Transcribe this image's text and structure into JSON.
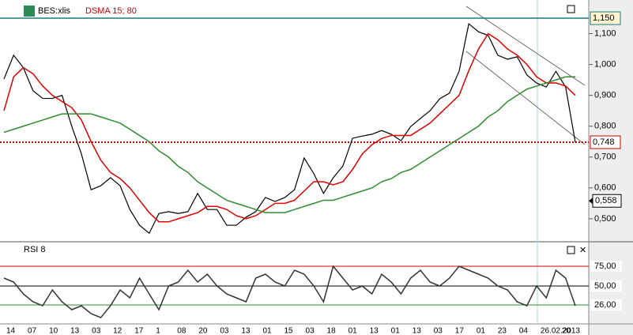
{
  "chart_data": [
    {
      "type": "line",
      "series": [
        {
          "name": "BES:xlis",
          "color": "#000000",
          "values": [
            0.953,
            1.03,
            0.99,
            0.915,
            0.89,
            0.89,
            0.9,
            0.8,
            0.71,
            0.594,
            0.607,
            0.633,
            0.607,
            0.53,
            0.479,
            0.453,
            0.517,
            0.523,
            0.517,
            0.523,
            0.582,
            0.53,
            0.53,
            0.479,
            0.479,
            0.505,
            0.523,
            0.569,
            0.556,
            0.569,
            0.594,
            0.697,
            0.646,
            0.582,
            0.633,
            0.671,
            0.761,
            0.768,
            0.774,
            0.786,
            0.774,
            0.753,
            0.799,
            0.825,
            0.85,
            0.889,
            0.907,
            0.978,
            1.132,
            1.106,
            1.094,
            1.03,
            1.017,
            1.025,
            0.966,
            0.94,
            0.927,
            0.978,
            0.927,
            0.748
          ]
        },
        {
          "name": "DSMA 15; 80",
          "color": "#e00000",
          "values": [
            0.85,
            0.96,
            0.99,
            0.97,
            0.93,
            0.9,
            0.88,
            0.86,
            0.82,
            0.75,
            0.69,
            0.65,
            0.63,
            0.6,
            0.56,
            0.52,
            0.49,
            0.49,
            0.5,
            0.51,
            0.52,
            0.54,
            0.54,
            0.53,
            0.51,
            0.5,
            0.51,
            0.53,
            0.55,
            0.55,
            0.56,
            0.59,
            0.62,
            0.62,
            0.61,
            0.62,
            0.66,
            0.71,
            0.74,
            0.76,
            0.77,
            0.77,
            0.77,
            0.79,
            0.81,
            0.84,
            0.87,
            0.9,
            0.98,
            1.05,
            1.1,
            1.08,
            1.05,
            1.03,
            1.0,
            0.96,
            0.94,
            0.94,
            0.93,
            0.9
          ]
        },
        {
          "color": "#2e8b2e",
          "values": [
            0.78,
            0.79,
            0.8,
            0.81,
            0.82,
            0.83,
            0.84,
            0.84,
            0.84,
            0.84,
            0.83,
            0.82,
            0.81,
            0.79,
            0.77,
            0.75,
            0.72,
            0.7,
            0.67,
            0.65,
            0.62,
            0.6,
            0.58,
            0.56,
            0.55,
            0.54,
            0.53,
            0.52,
            0.52,
            0.52,
            0.53,
            0.54,
            0.55,
            0.56,
            0.56,
            0.57,
            0.58,
            0.59,
            0.6,
            0.62,
            0.63,
            0.65,
            0.66,
            0.68,
            0.7,
            0.72,
            0.74,
            0.76,
            0.78,
            0.8,
            0.83,
            0.85,
            0.88,
            0.9,
            0.92,
            0.93,
            0.94,
            0.95,
            0.96,
            0.96
          ]
        }
      ],
      "ylim": [
        0.428,
        1.209
      ],
      "yticks": [
        {
          "value": 1.1,
          "label": "1,100"
        },
        {
          "value": 1.0,
          "label": "1,000"
        },
        {
          "value": 0.9,
          "label": "0,900"
        },
        {
          "value": 0.8,
          "label": "0,800"
        },
        {
          "value": 0.7,
          "label": "0,700"
        },
        {
          "value": 0.6,
          "label": "0,600"
        },
        {
          "value": 0.5,
          "label": "0,500"
        }
      ],
      "levels": [
        {
          "value": 1.15,
          "label": "1,150",
          "color": "#1a7a7a"
        },
        {
          "value": 0.748,
          "label": "0,748",
          "color": "#d00000"
        }
      ],
      "marker_label": {
        "value": 0.558,
        "label": "0,558"
      }
    },
    {
      "type": "line",
      "title": "RSI 8",
      "series": [
        {
          "color": "#333333",
          "values": [
            60,
            55,
            40,
            30,
            25,
            45,
            30,
            20,
            25,
            15,
            10,
            25,
            45,
            35,
            60,
            40,
            20,
            50,
            55,
            70,
            55,
            65,
            50,
            40,
            35,
            30,
            60,
            65,
            55,
            50,
            70,
            65,
            50,
            30,
            75,
            60,
            45,
            50,
            40,
            65,
            55,
            40,
            60,
            70,
            55,
            50,
            60,
            75,
            70,
            65,
            60,
            50,
            45,
            30,
            25,
            50,
            35,
            70,
            60,
            25
          ]
        }
      ],
      "ylim": [
        0,
        100
      ],
      "yticks": [
        {
          "value": 75,
          "label": "75,00",
          "color": "#d00000"
        },
        {
          "value": 50,
          "label": "50,00",
          "color": "#000000"
        },
        {
          "value": 26,
          "label": "26,00",
          "color": "#2e8b2e"
        }
      ],
      "date_labels": [
        "14",
        "07",
        "10",
        "13",
        "03",
        "12",
        "17",
        "1",
        "08",
        "20",
        "03",
        "13",
        "01",
        "15",
        "03",
        "18",
        "01",
        "13",
        "01",
        "13",
        "03",
        "17",
        "01",
        "23",
        "04",
        "26.02.2013",
        "20"
      ]
    }
  ]
}
